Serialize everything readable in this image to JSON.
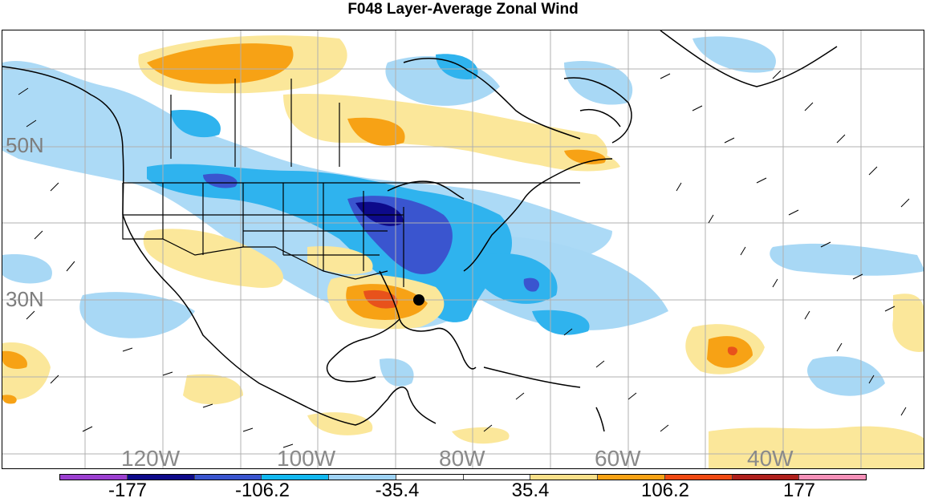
{
  "title": "F048 Layer-Average Zonal Wind",
  "lat_labels": {
    "lat50": "50N",
    "lat30": "30N"
  },
  "lon_labels": {
    "lon120": "120W",
    "lon100": "100W",
    "lon80": "80W",
    "lon60": "60W",
    "lon40": "40W"
  },
  "colorbar": {
    "colors": [
      "#9b3fd0",
      "#0d0a8a",
      "#3a55cf",
      "#12b8f0",
      "#9fd3f5",
      "#ffffff",
      "#ffffff",
      "#f9e08a",
      "#f7a215",
      "#f04a12",
      "#b0201c",
      "#f590b8"
    ],
    "tick_labels": {
      "t1": "-177",
      "t2": "-106.2",
      "t3": "-35.4",
      "t4": "35.4",
      "t5": "106.2",
      "t6": "177"
    }
  },
  "palette": {
    "light_blue": "#a8d8f5",
    "mid_blue": "#2fb3ee",
    "dark_blue": "#3a55cf",
    "navy": "#0d0a8a",
    "light_yellow": "#fbe79a",
    "orange": "#f7a215",
    "red_orange": "#e8521b"
  }
}
